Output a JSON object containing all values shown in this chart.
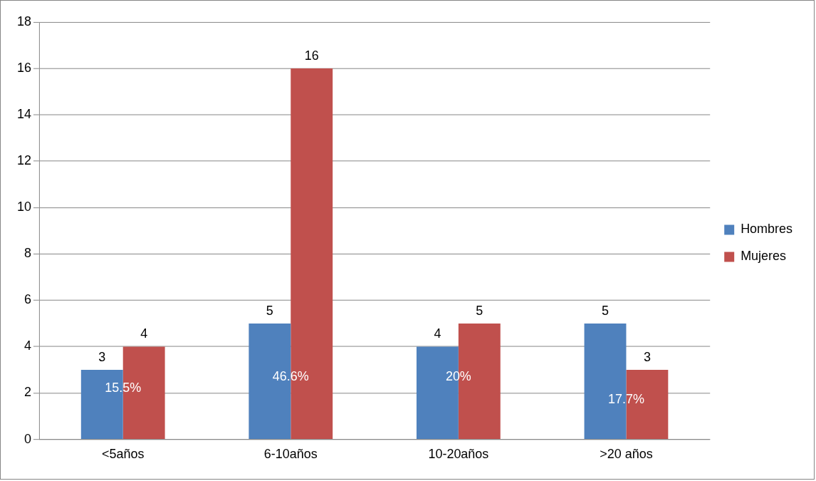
{
  "chart_data": {
    "type": "bar",
    "categories": [
      "<5años",
      "6-10años",
      "10-20años",
      ">20 años"
    ],
    "series": [
      {
        "name": "Hombres",
        "color": "#4f81bd",
        "values": [
          3,
          5,
          4,
          5
        ]
      },
      {
        "name": "Mujeres",
        "color": "#c0504d",
        "values": [
          4,
          16,
          5,
          3
        ]
      }
    ],
    "ylim": [
      0,
      18
    ],
    "yticks": [
      0,
      2,
      4,
      6,
      8,
      10,
      12,
      14,
      16,
      18
    ],
    "grid": "y",
    "legend": "right",
    "data_labels": true,
    "annotations": [
      {
        "text": "15.5%",
        "x": "<5años",
        "y": 2.2
      },
      {
        "text": "46.6%",
        "x": "6-10años",
        "y": 2.7
      },
      {
        "text": "20%",
        "x": "10-20años",
        "y": 2.7
      },
      {
        "text": "17.7%",
        "x": ">20 años",
        "y": 1.7
      }
    ]
  }
}
